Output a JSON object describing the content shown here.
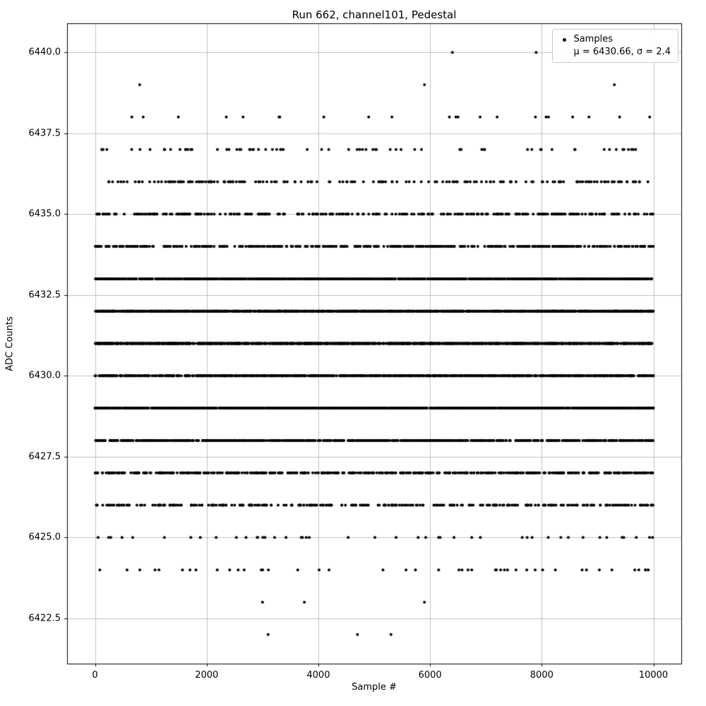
{
  "figure": {
    "title": "Run 662, channel101, Pedestal",
    "xlabel": "Sample #",
    "ylabel": "ADC Counts"
  },
  "legend": {
    "marker": "dot-icon",
    "line1": "Samples",
    "line2": "μ = 6430.66, σ = 2.4"
  },
  "chart_data": {
    "type": "scatter",
    "title": "Run 662, channel101, Pedestal",
    "xlabel": "Sample #",
    "ylabel": "ADC Counts",
    "xlim": [
      -500,
      10499
    ],
    "ylim": [
      6421.1,
      6440.9
    ],
    "sample_x_range": [
      0,
      9999
    ],
    "xticks": [
      0,
      2000,
      4000,
      6000,
      8000,
      10000
    ],
    "yticks": [
      6422.5,
      6425.0,
      6427.5,
      6430.0,
      6432.5,
      6435.0,
      6437.5,
      6440.0
    ],
    "grid": true,
    "grid_color": "#b0b0b0",
    "legend_position": "upper right",
    "marker_color": "#000000",
    "stats": {
      "mu": 6430.66,
      "sigma": 2.4
    },
    "levels": [
      {
        "adc": 6440,
        "points_x": [
          6400,
          7900
        ]
      },
      {
        "adc": 6439,
        "points_x": [
          800,
          5900,
          9300
        ]
      },
      {
        "adc": 6438,
        "count": 22
      },
      {
        "adc": 6437,
        "count": 70
      },
      {
        "adc": 6436,
        "count": 170
      },
      {
        "adc": 6435,
        "count": 300
      },
      {
        "adc": 6434,
        "count": 430
      },
      {
        "adc": 6433,
        "count": 1100
      },
      {
        "adc": 6432,
        "count": 1450
      },
      {
        "adc": 6431,
        "count": 1450
      },
      {
        "adc": 6430,
        "count": 1050
      },
      {
        "adc": 6429,
        "count": 1450
      },
      {
        "adc": 6428,
        "count": 800
      },
      {
        "adc": 6427,
        "count": 500
      },
      {
        "adc": 6426,
        "count": 300
      },
      {
        "adc": 6425,
        "count": 45
      },
      {
        "adc": 6424,
        "count": 45
      },
      {
        "adc": 6423,
        "points_x": [
          3000,
          3750,
          5900
        ]
      },
      {
        "adc": 6422,
        "points_x": [
          3100,
          4700,
          5300
        ]
      }
    ]
  }
}
